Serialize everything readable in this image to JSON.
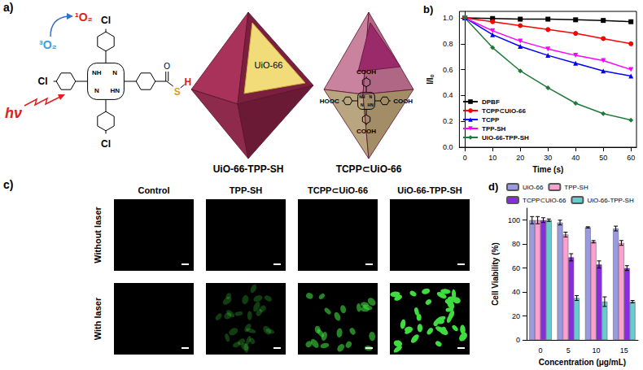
{
  "diagram": {
    "label": "a)",
    "light": "hν",
    "ground_oxygen": "³O₂",
    "singlet_oxygen": "¹O₂",
    "left": {
      "title": "UiO-66-TPP-SH",
      "framework": "UiO-66",
      "substituent": "Cl",
      "nitrogens": [
        "NH",
        "N",
        "N",
        "HN"
      ],
      "ester_oxygen": "O",
      "linker": [
        "S",
        "H"
      ]
    },
    "right": {
      "title": "TCPP⊂UiO-66",
      "groups": [
        "COOH",
        "HOOC",
        "COOH",
        "COOH"
      ],
      "nitrogens": [
        "NH",
        "N",
        "N",
        "HN"
      ]
    }
  },
  "chart_data": [
    {
      "type": "line",
      "title": "b)",
      "x_label": "Time (s)",
      "y_label": "I/Iₒ",
      "x": [
        0,
        10,
        20,
        30,
        40,
        50,
        60
      ],
      "series": [
        {
          "name": "DPBF",
          "color": "#000000",
          "marker": "square",
          "values": [
            1.0,
            0.995,
            0.99,
            0.99,
            0.985,
            0.98,
            0.97
          ]
        },
        {
          "name": "TCPP⊂UiO-66",
          "color": "#ff0000",
          "marker": "circle",
          "values": [
            1.0,
            0.97,
            0.94,
            0.91,
            0.88,
            0.84,
            0.8
          ]
        },
        {
          "name": "TCPP",
          "color": "#0000ff",
          "marker": "triangle",
          "values": [
            1.0,
            0.87,
            0.78,
            0.71,
            0.65,
            0.59,
            0.55
          ]
        },
        {
          "name": "TPP-SH",
          "color": "#ff00ff",
          "marker": "triangle_down",
          "values": [
            1.0,
            0.9,
            0.82,
            0.76,
            0.71,
            0.67,
            0.6
          ]
        },
        {
          "name": "UiO-66-TPP-SH",
          "color": "#1f7a3a",
          "marker": "diamond",
          "values": [
            1.0,
            0.77,
            0.59,
            0.46,
            0.34,
            0.26,
            0.21
          ]
        }
      ],
      "xlim": [
        -2,
        62
      ],
      "xticks": [
        0,
        10,
        20,
        30,
        40,
        50,
        60
      ],
      "ylim": [
        0,
        1.05
      ],
      "yticks": [
        {
          "value": 0,
          "label": "0.0"
        },
        0.2,
        0.4,
        0.6,
        0.8,
        {
          "value": 1,
          "label": "1.0"
        }
      ],
      "grid": false,
      "legend": "lower left"
    },
    {
      "type": "bar",
      "title": "d)",
      "x_label": "Concentration (μg/mL)",
      "y_label": "Cell Viability (%)",
      "categories": [
        "0",
        "5",
        "10",
        "15"
      ],
      "series": [
        {
          "name": "UiO-66",
          "color": "#9a9ae0",
          "values": [
            100,
            98,
            94,
            93
          ],
          "errors": [
            3,
            2,
            0.5,
            2
          ]
        },
        {
          "name": "TPP-SH",
          "color": "#ff9fcf",
          "values": [
            100,
            88,
            82,
            81
          ],
          "errors": [
            3,
            2,
            1,
            2
          ]
        },
        {
          "name": "TCPP⊂UiO-66",
          "color": "#8a2be2",
          "values": [
            100,
            69,
            63,
            60
          ],
          "errors": [
            2,
            3,
            3,
            2
          ]
        },
        {
          "name": "UiO-66-TPP-SH",
          "color": "#66cccc",
          "values": [
            100,
            35,
            32,
            32
          ],
          "errors": [
            1,
            2,
            4,
            1
          ]
        }
      ],
      "ylim": [
        0,
        110
      ],
      "yticks": [
        0,
        20,
        40,
        60,
        80,
        100
      ],
      "grid": false,
      "legend": "top"
    }
  ],
  "images": {
    "label": "c)",
    "columns": [
      "Control",
      "TPP-SH",
      "TCPP⊂UiO-66",
      "UiO-66-TPP-SH"
    ],
    "rows": [
      "Without laser",
      "With laser"
    ]
  }
}
